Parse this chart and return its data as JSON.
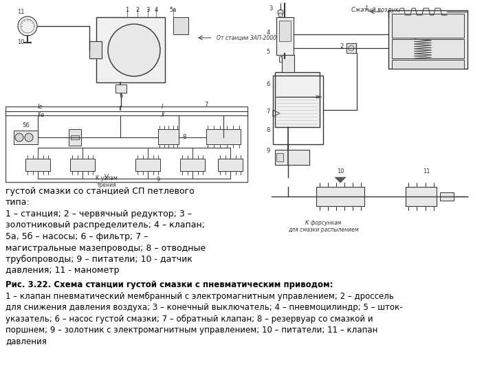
{
  "background_color": "#ffffff",
  "fig_width": 7.2,
  "fig_height": 5.4,
  "dpi": 100,
  "caption_line1": "густой смазки со станцией СП петлевого",
  "caption_line2": "типа:",
  "caption_line3": "1 – станция; 2 – червячный редуктор; 3 –",
  "caption_line4": "золотниковый распределитель; 4 – клапан;",
  "caption_line5": "5а, 5б – насосы; 6 – фильтр; 7 –",
  "caption_line6": "магистральные мазепроводы; 8 – отводные",
  "caption_line7": "трубопроводы; 9 – питатели; 10 - датчик",
  "caption_line8": "давления; 11 - манометр",
  "fig322_line1": "Рис. 3.22. Схема станции густой смазки с пневматическим приводом:",
  "fig322_line2": "1 – клапан пневматический мембранный с электромагнитным управлением; 2 – дроссель",
  "fig322_line3": "для снижения давления воздуха; 3 – конечный выключатель; 4 – пневмоцилиндр; 5 – шток-",
  "fig322_line4": "указатель; 6 – насос густой смазки; 7 – обратный клапан; 8 – резервуар со смазкой и",
  "fig322_line5": "поршнем; 9 – золотник с электромагнитным управлением; 10 – питатели; 11 – клапан",
  "fig322_line6": "давления",
  "font_size_caption": 9.0,
  "font_size_fig322": 8.5,
  "text_color": "#000000"
}
